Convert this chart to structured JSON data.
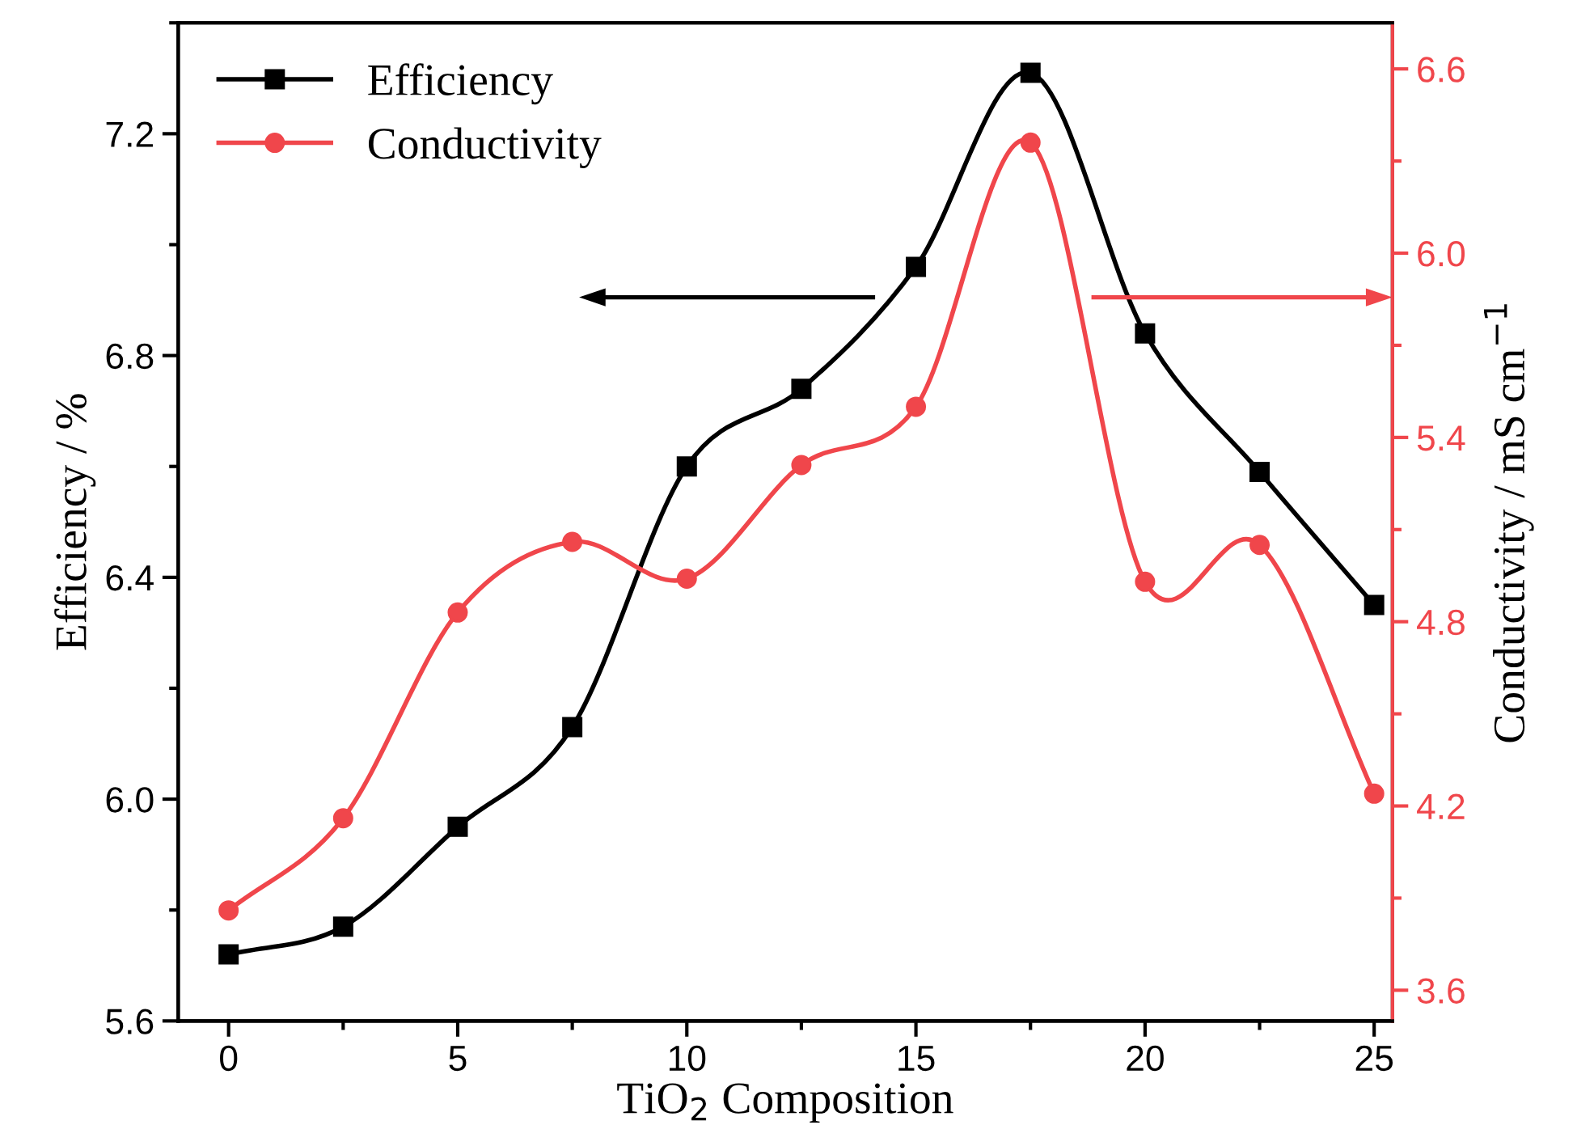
{
  "chart_data": {
    "type": "line",
    "xlabel": "TiO$_{2}$ Composition",
    "ylabel": "Efficiency / %",
    "y2label": "Conductivity / mS cm$^{−1}$",
    "x": [
      0,
      2.5,
      5,
      7.5,
      10,
      12.5,
      15,
      17.5,
      20,
      22.5,
      25
    ],
    "series": [
      {
        "name": "Efficiency",
        "color": "#000000",
        "marker": "square",
        "values": [
          5.72,
          5.77,
          5.95,
          6.13,
          6.6,
          6.74,
          6.96,
          7.31,
          6.84,
          6.59,
          6.35
        ]
      },
      {
        "name": "Conductivity",
        "color": "#f0464b",
        "marker": "circle",
        "axis": "y2",
        "values": [
          3.86,
          4.16,
          4.83,
          5.06,
          4.94,
          5.31,
          5.5,
          6.36,
          4.93,
          5.05,
          4.24
        ]
      }
    ],
    "xlim": [
      -1.1,
      25.4
    ],
    "xticks": [
      0,
      5,
      10,
      15,
      20,
      25
    ],
    "ylim": [
      5.6,
      7.4
    ],
    "yticks": [
      5.6,
      {
        "value": 6,
        "label": "6.0"
      },
      6.4,
      6.8,
      7.2
    ],
    "y2lim": [
      3.5,
      6.75
    ],
    "y2ticks": [
      3.6,
      4.2,
      4.8,
      5.4,
      {
        "value": 6,
        "label": "6.0"
      },
      6.6
    ],
    "legend": "top left",
    "grid": false,
    "line_style": "solid"
  }
}
